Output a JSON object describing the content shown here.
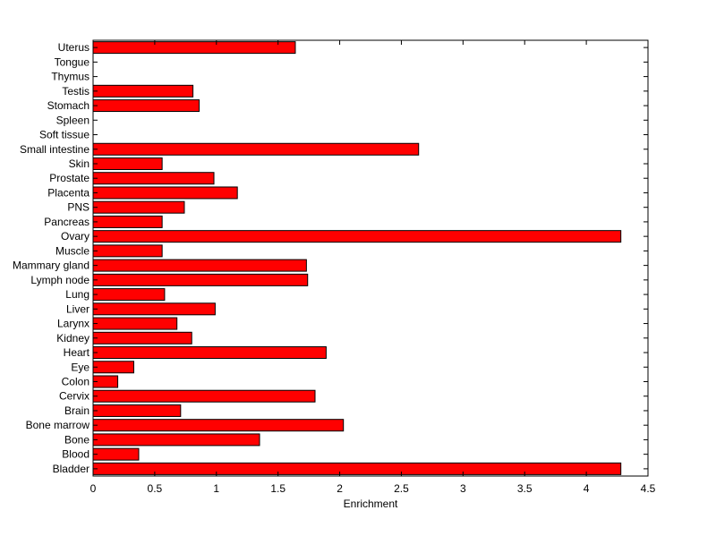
{
  "chart_data": {
    "type": "bar",
    "orientation": "horizontal",
    "title": "",
    "xlabel": "Enrichment",
    "ylabel": "",
    "xlim": [
      0,
      4.5
    ],
    "xticks": [
      0,
      0.5,
      1,
      1.5,
      2,
      2.5,
      3,
      3.5,
      4,
      4.5
    ],
    "xtick_labels": [
      "0",
      "0.5",
      "1",
      "1.5",
      "2",
      "2.5",
      "3",
      "3.5",
      "4",
      "4.5"
    ],
    "grid": false,
    "bar_color": "#ff0000",
    "bar_edge_color": "#000000",
    "categories": [
      "Bladder",
      "Blood",
      "Bone",
      "Bone marrow",
      "Brain",
      "Cervix",
      "Colon",
      "Eye",
      "Heart",
      "Kidney",
      "Larynx",
      "Liver",
      "Lung",
      "Lymph node",
      "Mammary gland",
      "Muscle",
      "Ovary",
      "Pancreas",
      "PNS",
      "Placenta",
      "Prostate",
      "Skin",
      "Small intestine",
      "Soft tissue",
      "Spleen",
      "Stomach",
      "Testis",
      "Thymus",
      "Tongue",
      "Uterus"
    ],
    "values": [
      4.28,
      0.37,
      1.35,
      2.03,
      0.71,
      1.8,
      0.2,
      0.33,
      1.89,
      0.8,
      0.68,
      0.99,
      0.58,
      1.74,
      1.73,
      0.56,
      4.28,
      0.56,
      0.74,
      1.17,
      0.98,
      0.56,
      2.64,
      0,
      0,
      0.86,
      0.81,
      0,
      0,
      1.64
    ]
  }
}
